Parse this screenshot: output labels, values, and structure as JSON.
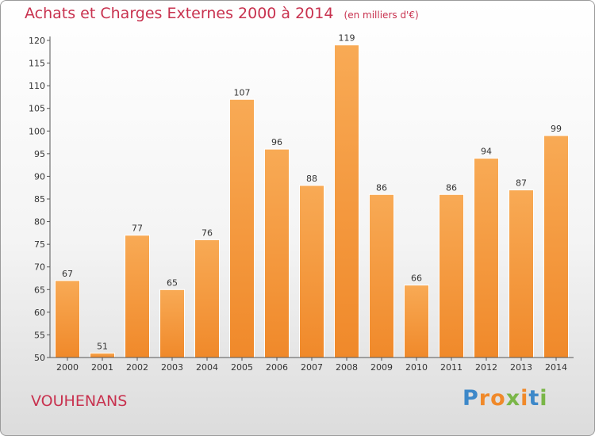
{
  "chart_data": {
    "type": "bar",
    "title": "Achats et Charges Externes 2000 à 2014",
    "subtitle": "(en milliers d'€)",
    "categories": [
      "2000",
      "2001",
      "2002",
      "2003",
      "2004",
      "2005",
      "2006",
      "2007",
      "2008",
      "2009",
      "2010",
      "2011",
      "2012",
      "2013",
      "2014"
    ],
    "values": [
      67,
      51,
      77,
      65,
      76,
      107,
      96,
      88,
      119,
      86,
      66,
      86,
      94,
      87,
      99
    ],
    "ylim": [
      50,
      120
    ],
    "ytick_step": 5,
    "grid": false,
    "bar_color": "#f0892a",
    "bar_color_light": "#f8aa55",
    "title_color": "#c8324f"
  },
  "place_name": "VOUHENANS",
  "logo": {
    "text": "Proxiti",
    "letters": [
      {
        "ch": "P",
        "color": "#3d88c9"
      },
      {
        "ch": "r",
        "color": "#f0892a"
      },
      {
        "ch": "o",
        "color": "#f0892a"
      },
      {
        "ch": "x",
        "color": "#7ab648"
      },
      {
        "ch": "i",
        "color": "#f0892a"
      },
      {
        "ch": "t",
        "color": "#3d88c9"
      },
      {
        "ch": "i",
        "color": "#7ab648"
      }
    ]
  }
}
